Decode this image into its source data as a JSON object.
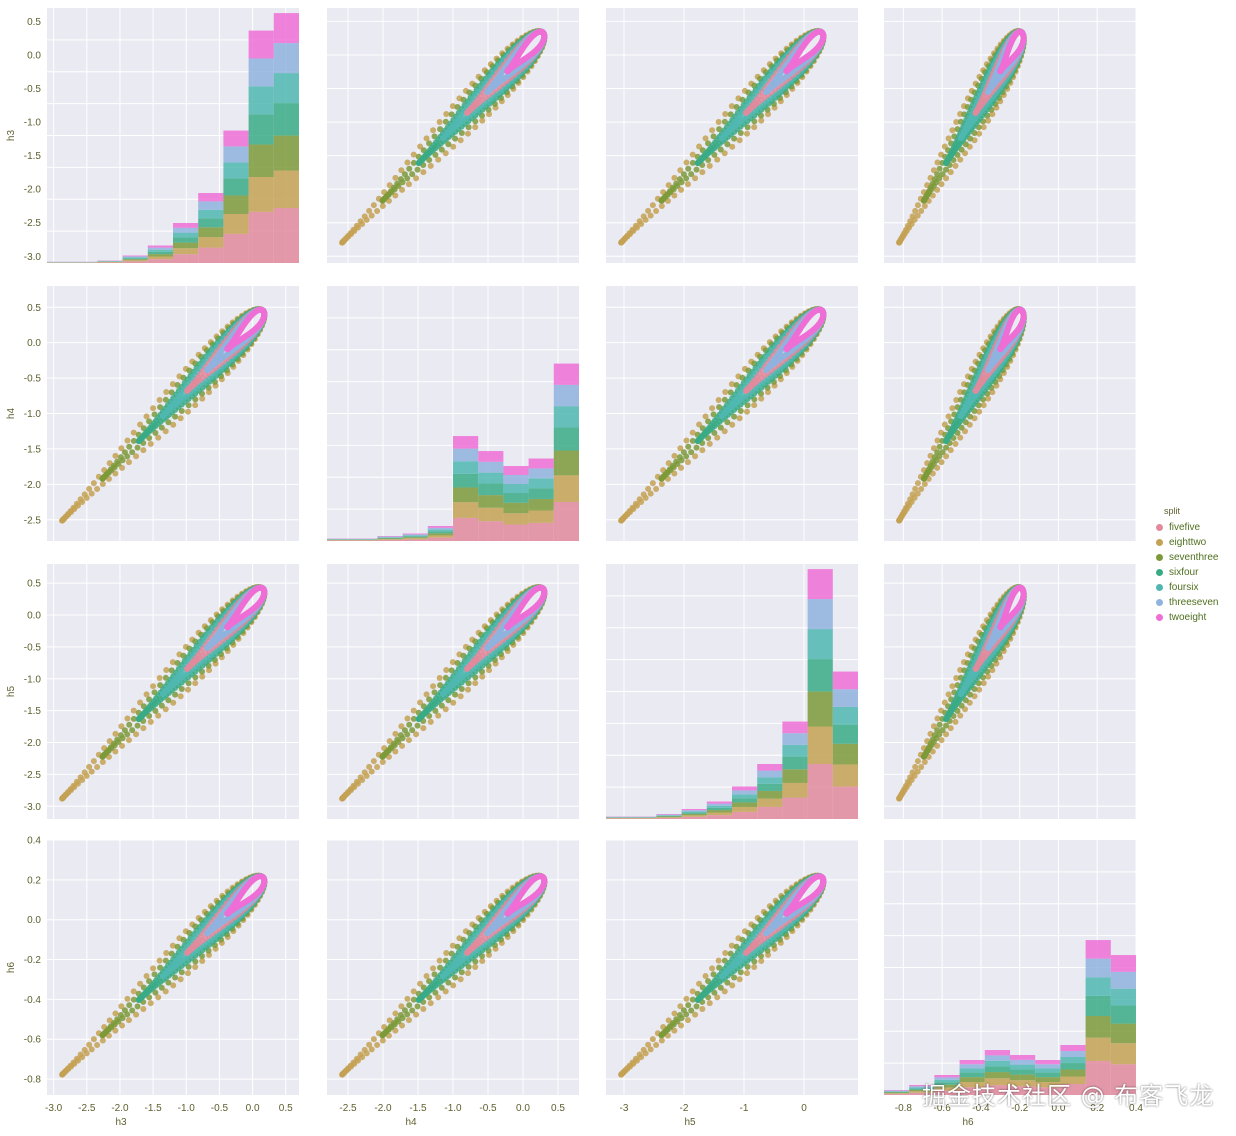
{
  "chart_data": {
    "type": "scatter",
    "variables": [
      "h3",
      "h4",
      "h5",
      "h6"
    ],
    "diagonal_type": "bar",
    "grid": true,
    "legend_position": "right",
    "legend_title": "split",
    "series": [
      {
        "name": "fivefive",
        "color": "#e08a9c"
      },
      {
        "name": "eighttwo",
        "color": "#c4a154"
      },
      {
        "name": "seventhree",
        "color": "#7c9a3a"
      },
      {
        "name": "sixfour",
        "color": "#3aaa86"
      },
      {
        "name": "foursix",
        "color": "#4fb7b0"
      },
      {
        "name": "threeseven",
        "color": "#8fb3de"
      },
      {
        "name": "twoeight",
        "color": "#ee6fd6"
      }
    ],
    "axes": {
      "h3": {
        "label": "h3",
        "lim": [
          -3.1,
          0.7
        ],
        "ticks": [
          -3.0,
          -2.5,
          -2.0,
          -1.5,
          -1.0,
          -0.5,
          0.0,
          0.5
        ],
        "ticklabels": [
          "-3.0",
          "-2.5",
          "-2.0",
          "-1.5",
          "-1.0",
          "-0.5",
          "0.0",
          "0.5"
        ]
      },
      "h4": {
        "label": "h4",
        "lim": [
          -2.8,
          0.8
        ],
        "ticks": [
          -2.5,
          -2.0,
          -1.5,
          -1.0,
          -0.5,
          0.0,
          0.5
        ],
        "ticklabels": [
          "-2.5",
          "-2.0",
          "-1.5",
          "-1.0",
          "-0.5",
          "0.0",
          "0.5"
        ]
      },
      "h5": {
        "label": "h5",
        "lim": [
          -3.3,
          0.9
        ],
        "ticks": [
          -3,
          -2,
          -1,
          0
        ],
        "ticklabels": [
          "-3",
          "-2",
          "-1",
          "0"
        ],
        "ticks_row": [
          -3.0,
          -2.5,
          -2.0,
          -1.5,
          -1.0,
          -0.5,
          0.0,
          0.5
        ],
        "ticklabels_row": [
          "-3.0",
          "-2.5",
          "-2.0",
          "-1.5",
          "-1.0",
          "-0.5",
          "0.0",
          "0.5"
        ],
        "lim_row": [
          -3.2,
          0.8
        ]
      },
      "h6": {
        "label": "h6",
        "lim": [
          -0.9,
          0.4
        ],
        "ticks": [
          -0.8,
          -0.6,
          -0.4,
          -0.2,
          0.0,
          0.2,
          0.4
        ],
        "ticklabels": [
          "-0.8",
          "-0.6",
          "-0.4",
          "-0.2",
          "0.0",
          "0.2",
          "0.4"
        ],
        "ticks_row": [
          -0.8,
          -0.6,
          -0.4,
          -0.2,
          0.0,
          0.2,
          0.4
        ],
        "ticklabels_row": [
          "-0.8",
          "-0.6",
          "-0.4",
          "-0.2",
          "0.0",
          "0.2",
          "0.4"
        ],
        "lim_row": [
          -0.88,
          0.4
        ]
      }
    },
    "histograms": {
      "h3": {
        "bins": [
          -3.1,
          -2.72,
          -2.34,
          -1.96,
          -1.58,
          -1.2,
          -0.82,
          -0.44,
          -0.06,
          0.32,
          0.7
        ],
        "stacked_tops": [
          0.005,
          0.005,
          0.01,
          0.03,
          0.07,
          0.16,
          0.28,
          0.53,
          0.93,
          1.0
        ]
      },
      "h4": {
        "bins": [
          -2.8,
          -2.44,
          -2.08,
          -1.72,
          -1.36,
          -1.0,
          -0.64,
          -0.28,
          0.08,
          0.44,
          0.8
        ],
        "stacked_tops": [
          0.01,
          0.01,
          0.02,
          0.03,
          0.06,
          0.42,
          0.36,
          0.3,
          0.33,
          0.71
        ]
      },
      "h5": {
        "bins": [
          -3.3,
          -2.88,
          -2.46,
          -2.04,
          -1.62,
          -1.2,
          -0.78,
          -0.36,
          0.06,
          0.48,
          0.9
        ],
        "stacked_tops": [
          0.01,
          0.01,
          0.02,
          0.04,
          0.07,
          0.13,
          0.22,
          0.39,
          1.0,
          0.59
        ]
      },
      "h6": {
        "bins": [
          -0.9,
          -0.77,
          -0.64,
          -0.51,
          -0.38,
          -0.25,
          -0.12,
          0.01,
          0.14,
          0.27,
          0.4
        ],
        "stacked_tops": [
          0.02,
          0.04,
          0.08,
          0.14,
          0.18,
          0.16,
          0.14,
          0.2,
          0.62,
          0.56
        ]
      }
    }
  },
  "watermark": "掘金技术社区 @ 布客飞龙"
}
